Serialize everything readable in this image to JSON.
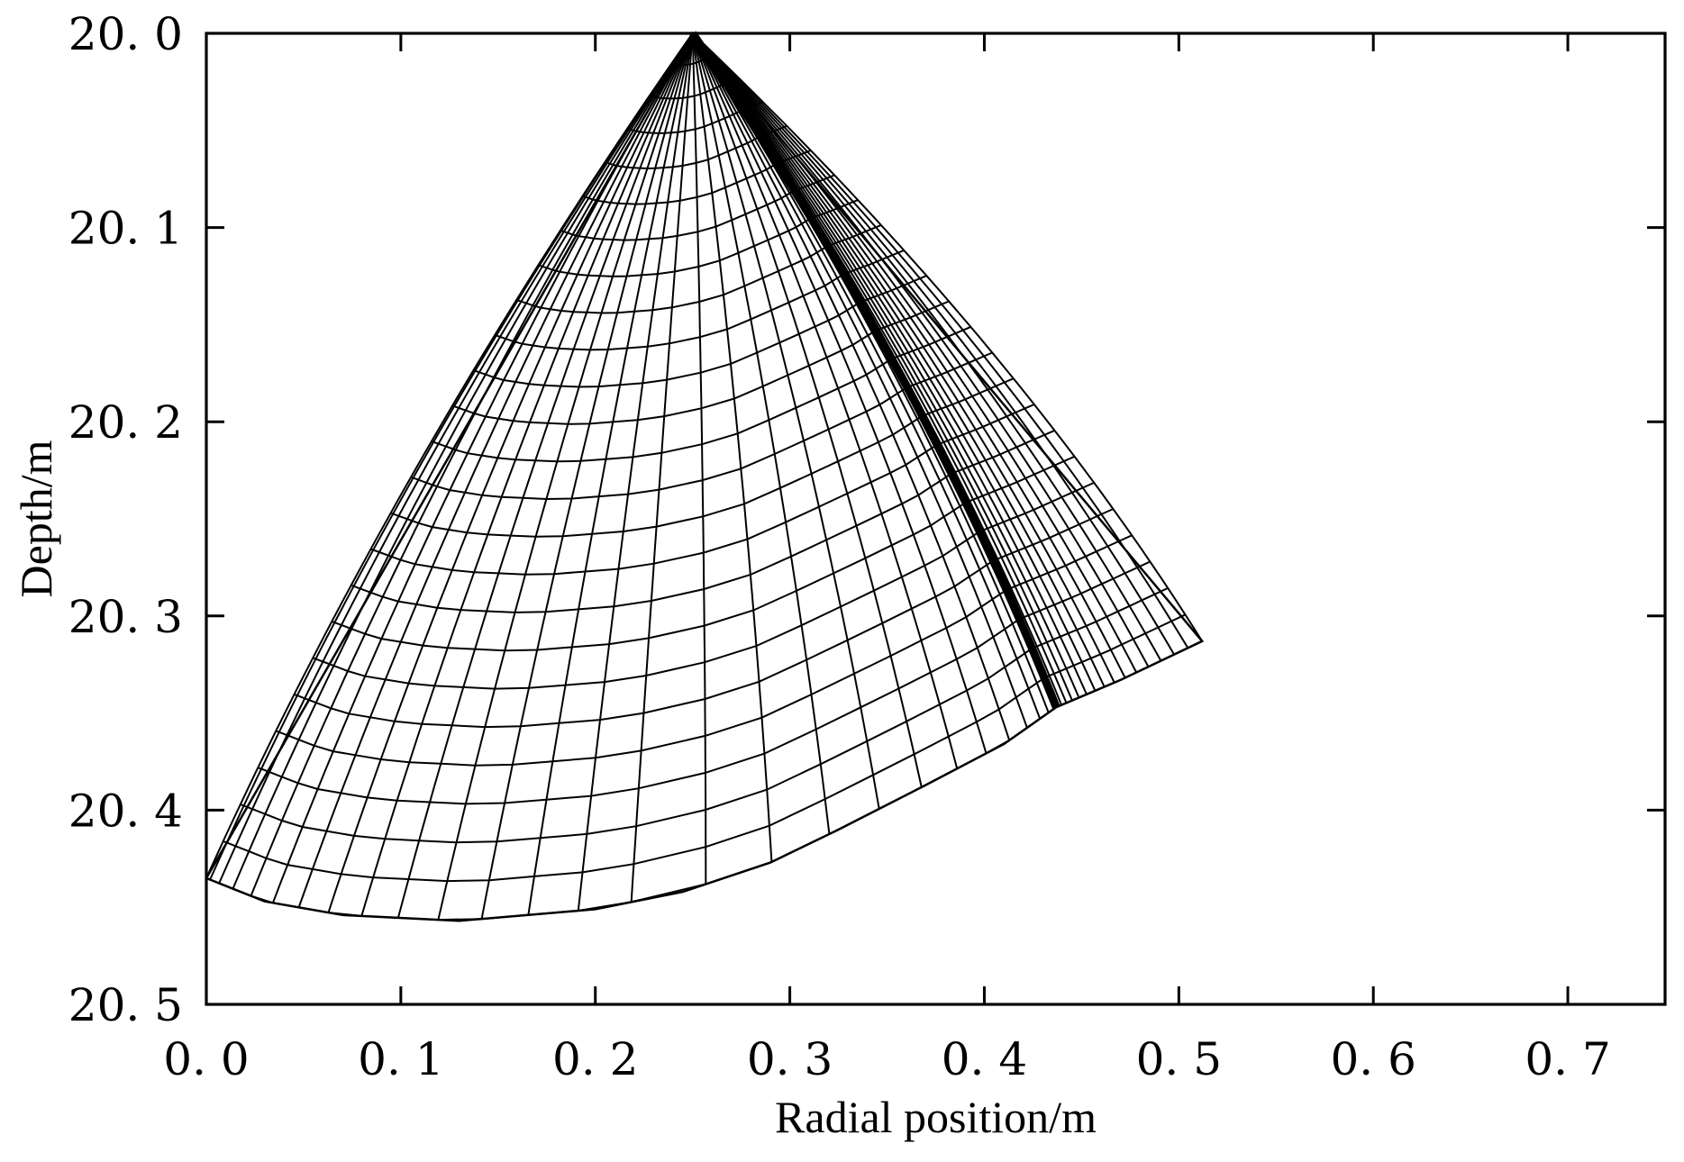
{
  "chart_data": {
    "type": "line",
    "xlabel": "Radial position/m",
    "ylabel": "Depth/m",
    "xlim": [
      0.0,
      0.75
    ],
    "ylim": [
      20.0,
      20.5
    ],
    "y_inverted": true,
    "x_ticks": [
      "0. 0",
      "0. 1",
      "0. 2",
      "0. 3",
      "0. 4",
      "0. 5",
      "0. 6",
      "0. 7"
    ],
    "x_tick_values": [
      0.0,
      0.1,
      0.2,
      0.3,
      0.4,
      0.5,
      0.6,
      0.7
    ],
    "y_ticks": [
      "20. 0",
      "20. 1",
      "20. 2",
      "20. 3",
      "20. 4",
      "20. 5"
    ],
    "y_tick_values": [
      20.0,
      20.1,
      20.2,
      20.3,
      20.4,
      20.5
    ],
    "grid": false,
    "legend": false,
    "mesh": {
      "apex": [
        0.25,
        20.0
      ],
      "left_edge_end": [
        0.0,
        20.435
      ],
      "right_edge_end": [
        0.512,
        20.313
      ],
      "dense_line_end": [
        0.437,
        20.347
      ],
      "bottom_boundary": [
        [
          0.0,
          20.435
        ],
        [
          0.03,
          20.447
        ],
        [
          0.07,
          20.454
        ],
        [
          0.13,
          20.457
        ],
        [
          0.2,
          20.451
        ],
        [
          0.245,
          20.442
        ],
        [
          0.29,
          20.427
        ],
        [
          0.325,
          20.41
        ],
        [
          0.37,
          20.387
        ],
        [
          0.41,
          20.366
        ],
        [
          0.437,
          20.347
        ],
        [
          0.47,
          20.333
        ],
        [
          0.512,
          20.313
        ]
      ],
      "radial_line_count": 45,
      "ring_count": 24,
      "line_color": "#000000"
    }
  }
}
